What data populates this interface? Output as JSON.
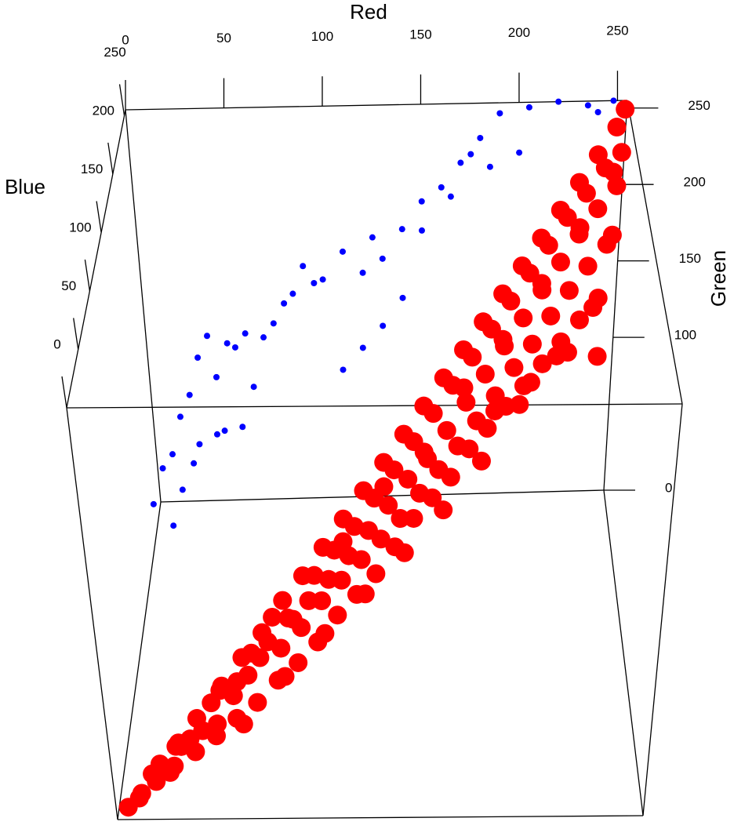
{
  "chart_data": {
    "type": "scatter3d",
    "xlabel": "Red",
    "ylabel": "Green",
    "zlabel": "Blue",
    "xlim": [
      0,
      255
    ],
    "ylim": [
      0,
      255
    ],
    "zlim": [
      0,
      255
    ],
    "xticks": [
      0,
      50,
      100,
      150,
      200,
      250
    ],
    "yticks": [
      0,
      100,
      150,
      200,
      250
    ],
    "zticks": [
      0,
      50,
      100,
      150,
      200,
      250
    ],
    "series": [
      {
        "color": "#ff0000",
        "x": [
          5,
          10,
          12,
          18,
          20,
          25,
          28,
          30,
          35,
          38,
          40,
          45,
          48,
          50,
          55,
          58,
          60,
          62,
          65,
          68,
          70,
          72,
          75,
          78,
          80,
          82,
          85,
          88,
          90,
          92,
          95,
          98,
          100,
          102,
          105,
          108,
          110,
          112,
          115,
          118,
          120,
          122,
          125,
          128,
          130,
          132,
          135,
          138,
          140,
          142,
          145,
          148,
          150,
          152,
          155,
          158,
          160,
          162,
          165,
          168,
          170,
          172,
          175,
          178,
          180,
          182,
          185,
          188,
          190,
          192,
          195,
          198,
          200,
          202,
          205,
          208,
          210,
          212,
          215,
          218,
          220,
          222,
          225,
          228,
          230,
          232,
          235,
          238,
          240,
          242,
          245,
          248,
          250,
          252,
          254,
          253,
          250,
          245,
          235,
          225,
          215,
          205,
          195,
          185,
          175,
          165,
          155,
          145,
          135,
          125,
          115,
          105,
          95,
          85,
          75,
          65,
          55,
          45,
          35,
          25,
          15,
          60,
          80,
          100,
          120,
          140,
          160,
          180,
          200,
          220,
          240,
          110,
          130,
          150,
          170,
          190,
          210,
          230,
          248,
          50,
          30,
          245,
          230,
          210,
          190
        ],
        "y": [
          3,
          4,
          10,
          8,
          15,
          12,
          22,
          18,
          25,
          30,
          20,
          35,
          28,
          40,
          30,
          45,
          50,
          35,
          55,
          42,
          60,
          48,
          65,
          40,
          70,
          55,
          62,
          45,
          80,
          58,
          70,
          50,
          90,
          65,
          78,
          55,
          100,
          72,
          85,
          60,
          110,
          80,
          95,
          65,
          120,
          88,
          105,
          70,
          130,
          95,
          115,
          78,
          140,
          100,
          125,
          85,
          150,
          110,
          135,
          92,
          160,
          120,
          145,
          100,
          170,
          130,
          155,
          108,
          180,
          140,
          165,
          118,
          190,
          150,
          175,
          125,
          200,
          160,
          185,
          135,
          210,
          170,
          195,
          145,
          220,
          180,
          205,
          155,
          230,
          190,
          215,
          165,
          240,
          200,
          250,
          225,
          175,
          130,
          120,
          110,
          100,
          90,
          85,
          75,
          70,
          60,
          55,
          50,
          40,
          35,
          30,
          25,
          20,
          15,
          12,
          10,
          8,
          5,
          3,
          2,
          5,
          20,
          30,
          45,
          50,
          60,
          75,
          90,
          110,
          125,
          140,
          95,
          110,
          120,
          145,
          160,
          180,
          200,
          220,
          45,
          28,
          100,
          95,
          80,
          70
        ],
        "z": [
          6,
          12,
          8,
          20,
          25,
          22,
          30,
          35,
          32,
          42,
          45,
          48,
          40,
          55,
          60,
          52,
          65,
          70,
          62,
          75,
          72,
          80,
          78,
          85,
          85,
          90,
          80,
          95,
          92,
          100,
          105,
          110,
          102,
          108,
          115,
          120,
          112,
          118,
          125,
          130,
          122,
          128,
          135,
          140,
          132,
          138,
          145,
          150,
          142,
          150,
          155,
          160,
          152,
          160,
          165,
          170,
          162,
          170,
          175,
          180,
          172,
          180,
          185,
          190,
          182,
          190,
          195,
          200,
          192,
          200,
          205,
          210,
          202,
          210,
          215,
          220,
          212,
          220,
          225,
          230,
          222,
          230,
          235,
          238,
          232,
          240,
          242,
          245,
          242,
          248,
          250,
          250,
          252,
          254,
          254,
          250,
          245,
          250,
          245,
          240,
          235,
          230,
          220,
          215,
          205,
          195,
          185,
          175,
          165,
          150,
          140,
          130,
          115,
          105,
          95,
          80,
          70,
          60,
          50,
          40,
          30,
          50,
          75,
          90,
          115,
          135,
          150,
          170,
          190,
          210,
          230,
          100,
          125,
          140,
          160,
          180,
          200,
          220,
          240,
          45,
          25,
          240,
          250,
          245,
          235
        ]
      },
      {
        "color": "#0000ff",
        "x": [
          190,
          205,
          220,
          235,
          248,
          240,
          180,
          175,
          170,
          160,
          150,
          165,
          150,
          140,
          130,
          120,
          125,
          110,
          100,
          90,
          95,
          85,
          80,
          75,
          70,
          60,
          55,
          50,
          40,
          35,
          45,
          30,
          25,
          35,
          20,
          15,
          25,
          10,
          20,
          30,
          140,
          130,
          120,
          110,
          200,
          185,
          60,
          50,
          45,
          65
        ],
        "y": [
          252,
          254,
          255,
          253,
          255,
          250,
          240,
          235,
          228,
          220,
          215,
          210,
          200,
          205,
          190,
          185,
          200,
          195,
          185,
          190,
          175,
          180,
          170,
          165,
          160,
          155,
          150,
          145,
          150,
          140,
          135,
          120,
          110,
          100,
          90,
          85,
          75,
          70,
          60,
          80,
          180,
          170,
          160,
          150,
          230,
          225,
          130,
          120,
          110,
          140
        ],
        "z": [
          250,
          252,
          255,
          254,
          255,
          252,
          245,
          238,
          240,
          230,
          225,
          235,
          220,
          215,
          210,
          205,
          215,
          210,
          200,
          205,
          210,
          195,
          200,
          190,
          185,
          195,
          190,
          200,
          200,
          195,
          185,
          190,
          185,
          175,
          180,
          175,
          170,
          165,
          160,
          185,
          190,
          180,
          175,
          170,
          245,
          240,
          150,
          160,
          170,
          170
        ]
      }
    ]
  }
}
